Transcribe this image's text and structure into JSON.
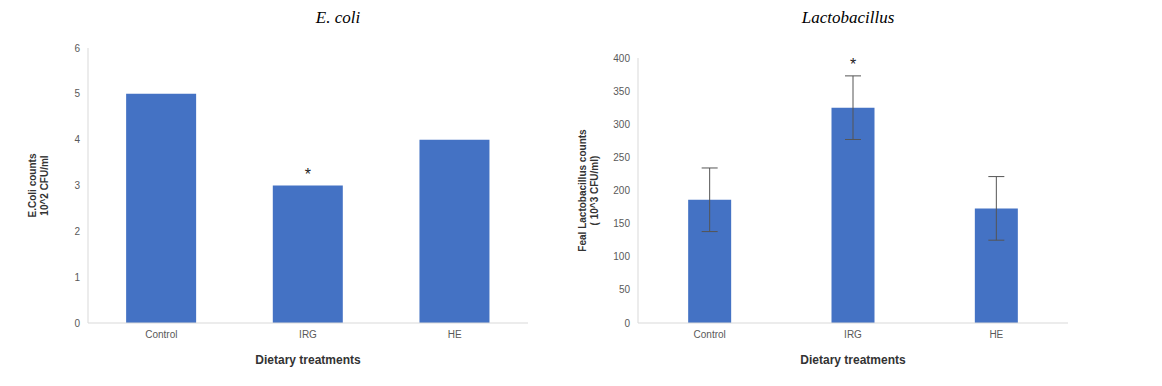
{
  "chart_data": [
    {
      "type": "bar",
      "title": "E. coli",
      "categories": [
        "Control",
        "IRG",
        "HE"
      ],
      "values": [
        5,
        3,
        4
      ],
      "color": "#4472c4",
      "ylim": [
        0,
        6
      ],
      "yticks": [
        0,
        1,
        2,
        3,
        4,
        5,
        6
      ],
      "ylabel": [
        "E.Coli counts",
        "10^2 CFU/ml"
      ],
      "xlabel": "Dietary treatments",
      "annotations": [
        {
          "category": "IRG",
          "text": "*"
        }
      ],
      "grid": false
    },
    {
      "type": "bar",
      "title": "Lactobacillus",
      "categories": [
        "Control",
        "IRG",
        "HE"
      ],
      "values": [
        186,
        325,
        173
      ],
      "errors": [
        48,
        48,
        48
      ],
      "color": "#4472c4",
      "ylim": [
        0,
        400
      ],
      "yticks": [
        0,
        50,
        100,
        150,
        200,
        250,
        300,
        350,
        400
      ],
      "ylabel": [
        "Feal Lactobacillus counts",
        "( 10^3 CFU/ml)"
      ],
      "xlabel": "Dietary treatments",
      "annotations": [
        {
          "category": "IRG",
          "text": "*"
        }
      ],
      "grid": false
    }
  ]
}
